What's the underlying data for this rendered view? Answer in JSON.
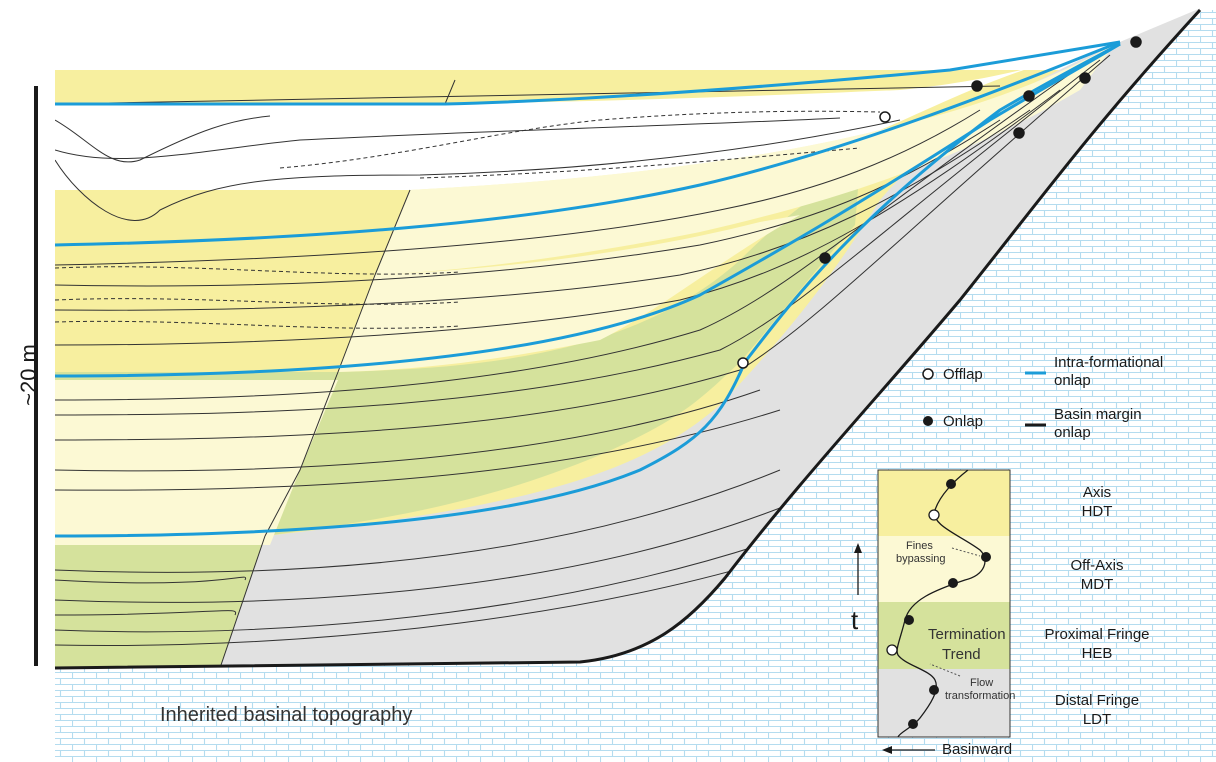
{
  "scale_label": "~20 m",
  "basin_label": "Inherited basinal topography",
  "colors": {
    "axis_fill": "#f7ef9f",
    "off_axis_fill": "#fcf9d4",
    "proximal_fringe_fill": "#d5e29c",
    "distal_fringe_fill": "#e1e1e1",
    "intra_formational_onlap_line": "#1b9cd8",
    "basin_margin_onlap_line": "#1a1a1a",
    "substrate_brick": "#b4dcef"
  },
  "legend": {
    "offlap": "Offlap",
    "onlap": "Onlap",
    "intra_onlap": [
      "Intra-formational",
      "onlap"
    ],
    "basin_onlap": [
      "Basin margin",
      "onlap"
    ]
  },
  "inset": {
    "time_axis": "t",
    "direction": "Basinward",
    "facies": [
      {
        "name": "Axis",
        "code": "HDT"
      },
      {
        "name": "Off-Axis",
        "code": "MDT"
      },
      {
        "name": "Proximal Fringe",
        "code": "HEB"
      },
      {
        "name": "Distal Fringe",
        "code": "LDT"
      }
    ],
    "fines_bypassing": [
      "Fines",
      "bypassing"
    ],
    "termination_trend": [
      "Termination",
      "Trend"
    ],
    "flow_transformation": [
      "Flow",
      "transformation"
    ]
  }
}
